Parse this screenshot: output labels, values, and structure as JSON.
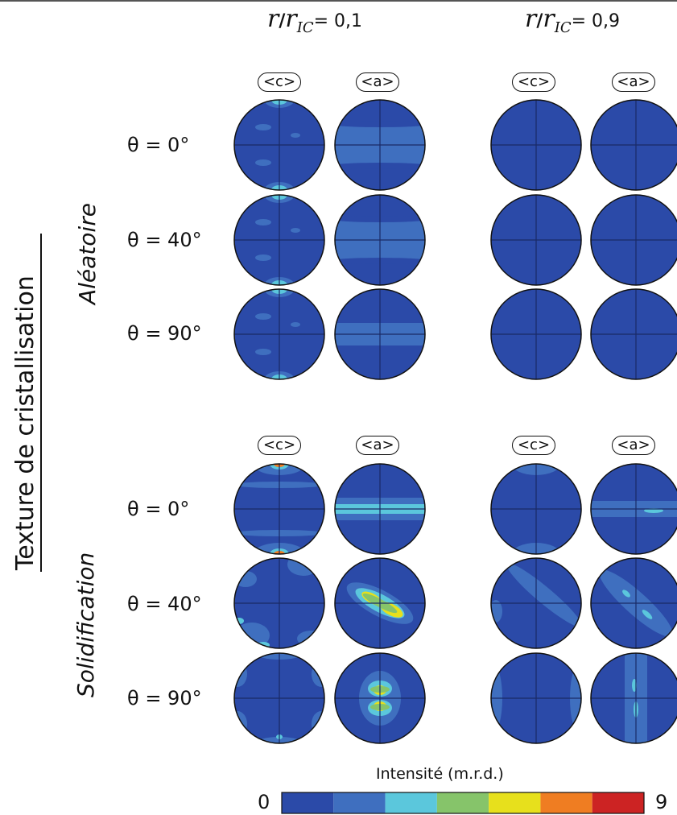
{
  "column_headers": {
    "left": {
      "var": "r",
      "sep": "/",
      "den": "r",
      "sub": "IC",
      "eq": "= 0,1"
    },
    "right": {
      "var": "r",
      "sep": "/",
      "den": "r",
      "sub": "IC",
      "eq": "= 0,9"
    }
  },
  "pole_labels": [
    "<c>",
    "<a>",
    "<c>",
    "<a>",
    "<c>",
    "<a>",
    "<c>",
    "<a>"
  ],
  "row_labels": [
    "θ = 0°",
    "θ = 40°",
    "θ = 90°",
    "θ = 0°",
    "θ = 40°",
    "θ = 90°"
  ],
  "group_labels": {
    "top": "Aléatoire",
    "bottom": "Solidification"
  },
  "side_title": "Texture de cristallisation",
  "colorbar": {
    "label": "Intensité (m.r.d.)",
    "min": "0",
    "max": "9",
    "colors": [
      "#2b4aa8",
      "#3f6fbf",
      "#5bc7dc",
      "#86c46a",
      "#e7e01c",
      "#ef7d22",
      "#cc2323"
    ]
  },
  "colors": {
    "background": "#2b4aa8",
    "level1": "#3f6fbf",
    "level2": "#5bc7dc",
    "level3": "#86c46a",
    "level4": "#e7e01c",
    "level5": "#ef7d22",
    "level6": "#cc2323"
  }
}
